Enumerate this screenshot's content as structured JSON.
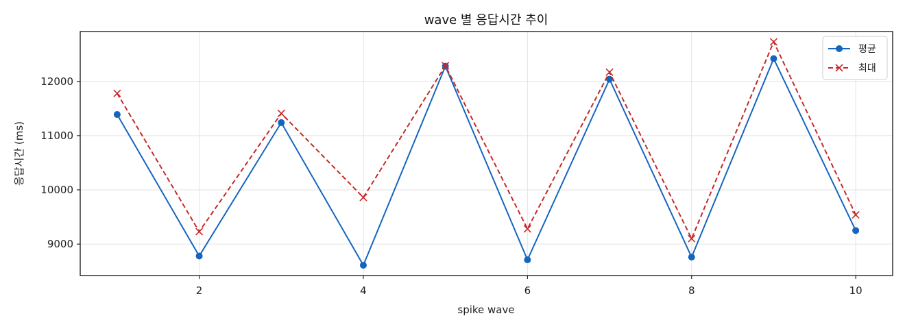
{
  "chart_data": {
    "type": "line",
    "title": "wave 별 응답시간 추이",
    "xlabel": "spike wave",
    "ylabel": "응답시간 (ms)",
    "x": [
      1,
      2,
      3,
      4,
      5,
      6,
      7,
      8,
      9,
      10
    ],
    "xlim": [
      0.55,
      10.45
    ],
    "ylim": [
      8420,
      12920
    ],
    "xticks": [
      2,
      4,
      6,
      8,
      10
    ],
    "yticks": [
      9000,
      10000,
      11000,
      12000
    ],
    "grid": true,
    "legend_position": "top-right",
    "series": [
      {
        "name": "평균",
        "color": "#1565c0",
        "marker": "circle",
        "line_style": "solid",
        "values": [
          11390,
          8780,
          11240,
          8610,
          12280,
          8710,
          12040,
          8760,
          12420,
          9250
        ]
      },
      {
        "name": "최대",
        "color": "#c62828",
        "marker": "x",
        "line_style": "dashed",
        "values": [
          11780,
          9230,
          11410,
          9860,
          12290,
          9280,
          12170,
          9100,
          12730,
          9540
        ]
      }
    ]
  }
}
